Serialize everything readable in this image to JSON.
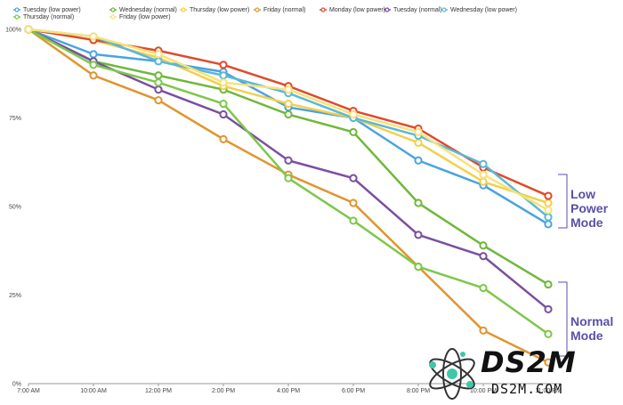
{
  "chart_data": {
    "type": "line",
    "x": [
      "7:00 AM",
      "10:00 AM",
      "12:00 PM",
      "2:00 PM",
      "4:00 PM",
      "6:00 PM",
      "8:00 PM",
      "10:00 PM",
      "11:00 PM"
    ],
    "y_ticks": [
      "100%",
      "75%",
      "50%",
      "25%",
      "0%"
    ],
    "ylim": [
      0,
      100
    ],
    "grid": false,
    "legend_position": "top",
    "series": [
      {
        "name": "Tuesday (low power)",
        "color": "#4aa3e0",
        "values": [
          100,
          93,
          91,
          88,
          78,
          75,
          63,
          56,
          45
        ]
      },
      {
        "name": "Wednesday (normal)",
        "color": "#6fb83a",
        "values": [
          100,
          91,
          87,
          83,
          76,
          71,
          51,
          39,
          28
        ]
      },
      {
        "name": "Thursday (low power)",
        "color": "#f2d04a",
        "values": [
          100,
          97,
          92,
          84,
          79,
          75,
          68,
          57,
          51
        ]
      },
      {
        "name": "Friday (normal)",
        "color": "#e0952e",
        "values": [
          100,
          87,
          80,
          69,
          59,
          51,
          33,
          15,
          6
        ]
      },
      {
        "name": "Monday (low power)",
        "color": "#e04a2a",
        "values": [
          100,
          97,
          94,
          90,
          84,
          77,
          72,
          61,
          53
        ]
      },
      {
        "name": "Tuesday (normal)",
        "color": "#7a4fa0",
        "values": [
          100,
          91,
          83,
          76,
          63,
          58,
          42,
          36,
          21
        ]
      },
      {
        "name": "Wednesday (low power)",
        "color": "#5ab8d8",
        "values": [
          100,
          98,
          91,
          87,
          82,
          75,
          70,
          62,
          47
        ]
      },
      {
        "name": "Thursday (normal)",
        "color": "#7cc84a",
        "values": [
          100,
          90,
          85,
          79,
          58,
          46,
          33,
          27,
          14
        ]
      },
      {
        "name": "Friday (low power)",
        "color": "#f7e27a",
        "values": [
          100,
          98,
          93,
          85,
          83,
          76,
          71,
          59,
          49
        ]
      }
    ]
  },
  "annotations": {
    "low_power": [
      "Low",
      "Power",
      "Mode"
    ],
    "normal": [
      "Normal",
      "Mode"
    ]
  },
  "logo": {
    "text": "DS2M",
    "subtext": "DS2M.COM"
  }
}
